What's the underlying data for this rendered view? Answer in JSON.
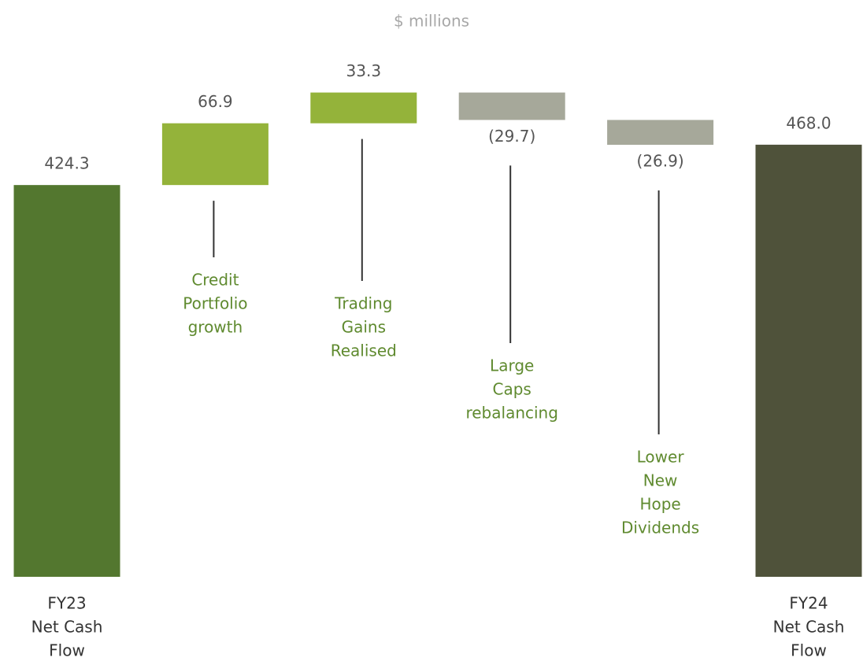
{
  "chart_data": {
    "type": "waterfall",
    "subtitle": "$ millions",
    "categories": [
      [
        "FY23",
        "Net Cash",
        "Flow"
      ],
      [
        "Credit",
        "Portfolio",
        "growth"
      ],
      [
        "Trading",
        "Gains",
        "Realised"
      ],
      [
        "Large",
        "Caps",
        "rebalancing"
      ],
      [
        "Lower",
        "New",
        "Hope",
        "Dividends"
      ],
      [
        "FY24",
        "Net Cash",
        "Flow"
      ]
    ],
    "measure": [
      "absolute",
      "relative",
      "relative",
      "relative",
      "relative",
      "total"
    ],
    "values": [
      424.3,
      66.9,
      33.3,
      -29.7,
      -26.9,
      468.0
    ],
    "value_labels": [
      "424.3",
      "66.9",
      "33.3",
      "(29.7)",
      "(26.9)",
      "468.0"
    ],
    "colors": {
      "absolute": "#53772f",
      "increase": "#94b33a",
      "decrease": "#a6a89a",
      "total": "#4f523a"
    },
    "ylim": [
      0,
      525
    ]
  }
}
